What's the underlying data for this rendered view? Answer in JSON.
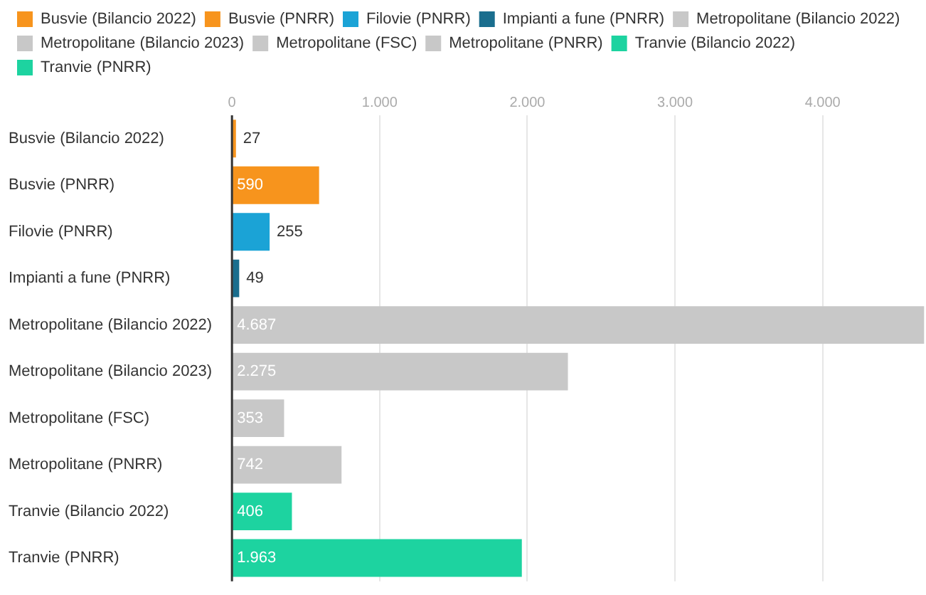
{
  "chart_data": {
    "type": "bar",
    "orientation": "horizontal",
    "categories": [
      "Busvie (Bilancio 2022)",
      "Busvie (PNRR)",
      "Filovie (PNRR)",
      "Impianti a fune (PNRR)",
      "Metropolitane (Bilancio 2022)",
      "Metropolitane (Bilancio 2023)",
      "Metropolitane (FSC)",
      "Metropolitane (PNRR)",
      "Tranvie (Bilancio 2022)",
      "Tranvie (PNRR)"
    ],
    "series": [
      {
        "name": "Busvie (Bilancio 2022)",
        "color": "#f7941d",
        "values": [
          27,
          null,
          null,
          null,
          null,
          null,
          null,
          null,
          null,
          null
        ],
        "value_labels": [
          "27",
          null,
          null,
          null,
          null,
          null,
          null,
          null,
          null,
          null
        ]
      },
      {
        "name": "Busvie (PNRR)",
        "color": "#f7941d",
        "values": [
          null,
          590,
          null,
          null,
          null,
          null,
          null,
          null,
          null,
          null
        ],
        "value_labels": [
          null,
          "590",
          null,
          null,
          null,
          null,
          null,
          null,
          null,
          null
        ]
      },
      {
        "name": "Filovie (PNRR)",
        "color": "#1ba3d6",
        "values": [
          null,
          null,
          255,
          null,
          null,
          null,
          null,
          null,
          null,
          null
        ],
        "value_labels": [
          null,
          null,
          "255",
          null,
          null,
          null,
          null,
          null,
          null,
          null
        ]
      },
      {
        "name": "Impianti a fune (PNRR)",
        "color": "#1a6e8e",
        "values": [
          null,
          null,
          null,
          49,
          null,
          null,
          null,
          null,
          null,
          null
        ],
        "value_labels": [
          null,
          null,
          null,
          "49",
          null,
          null,
          null,
          null,
          null,
          null
        ]
      },
      {
        "name": "Metropolitane (Bilancio 2022)",
        "color": "#c8c8c8",
        "values": [
          null,
          null,
          null,
          null,
          4687,
          null,
          null,
          null,
          null,
          null
        ],
        "value_labels": [
          null,
          null,
          null,
          null,
          "4.687",
          null,
          null,
          null,
          null,
          null
        ]
      },
      {
        "name": "Metropolitane (Bilancio 2023)",
        "color": "#c8c8c8",
        "values": [
          null,
          null,
          null,
          null,
          null,
          2275,
          null,
          null,
          null,
          null
        ],
        "value_labels": [
          null,
          null,
          null,
          null,
          null,
          "2.275",
          null,
          null,
          null,
          null
        ]
      },
      {
        "name": "Metropolitane (FSC)",
        "color": "#c8c8c8",
        "values": [
          null,
          null,
          null,
          null,
          null,
          null,
          353,
          null,
          null,
          null
        ],
        "value_labels": [
          null,
          null,
          null,
          null,
          null,
          null,
          "353",
          null,
          null,
          null
        ]
      },
      {
        "name": "Metropolitane (PNRR)",
        "color": "#c8c8c8",
        "values": [
          null,
          null,
          null,
          null,
          null,
          null,
          null,
          742,
          null,
          null
        ],
        "value_labels": [
          null,
          null,
          null,
          null,
          null,
          null,
          null,
          "742",
          null,
          null
        ]
      },
      {
        "name": "Tranvie (Bilancio 2022)",
        "color": "#1dd3a0",
        "values": [
          null,
          null,
          null,
          null,
          null,
          null,
          null,
          null,
          406,
          null
        ],
        "value_labels": [
          null,
          null,
          null,
          null,
          null,
          null,
          null,
          null,
          "406",
          null
        ]
      },
      {
        "name": "Tranvie (PNRR)",
        "color": "#1dd3a0",
        "values": [
          null,
          null,
          null,
          null,
          null,
          null,
          null,
          null,
          null,
          1963
        ],
        "value_labels": [
          null,
          null,
          null,
          null,
          null,
          null,
          null,
          null,
          null,
          "1.963"
        ]
      }
    ],
    "xlim": [
      0,
      4700
    ],
    "xticks": [
      0,
      {
        "value": 1000,
        "label": "1.000"
      },
      {
        "value": 2000,
        "label": "2.000"
      },
      {
        "value": 3000,
        "label": "3.000"
      },
      {
        "value": 4000,
        "label": "4.000"
      }
    ],
    "grid": "x",
    "legend": "top"
  }
}
